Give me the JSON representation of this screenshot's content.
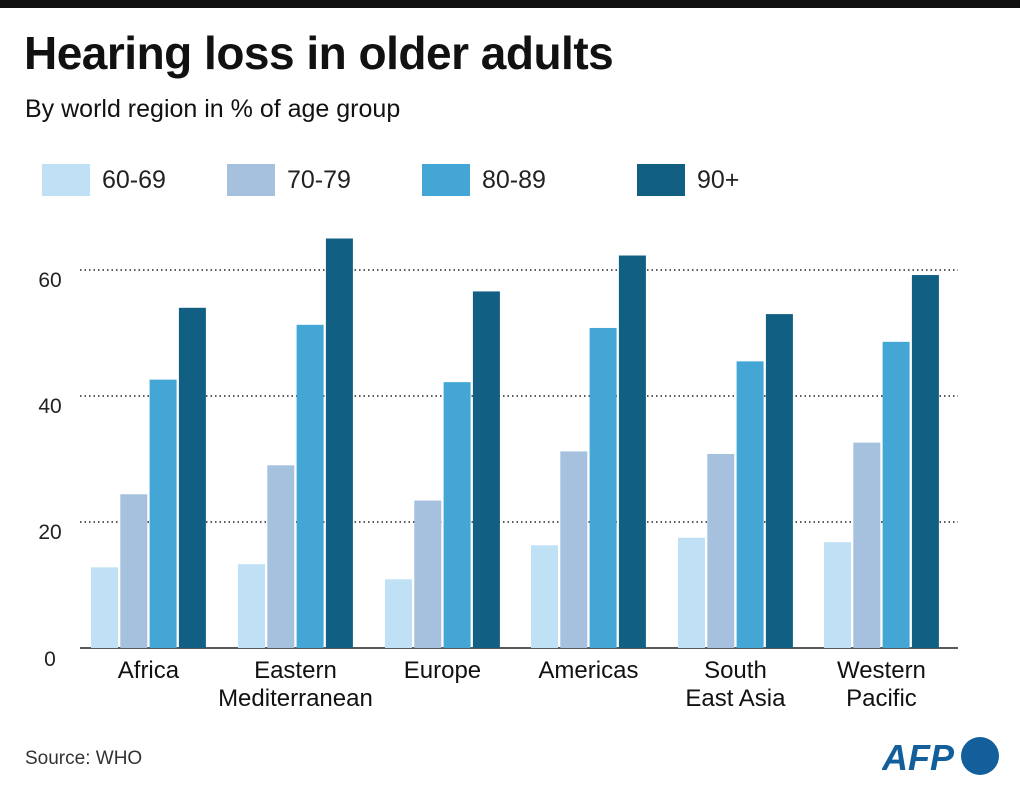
{
  "header": {
    "title": "Hearing loss in older adults",
    "subtitle": "By world region in % of age group"
  },
  "footer": {
    "source": "Source:  WHO",
    "logo_text": "AFP"
  },
  "colors": {
    "series": [
      "#bfe0f5",
      "#a6c1de",
      "#43a6d4",
      "#125f84"
    ],
    "grid": "#222222",
    "text": "#111111"
  },
  "chart_data": {
    "type": "bar",
    "title": "Hearing loss in older adults",
    "subtitle": "By world region in % of age group",
    "categories": [
      [
        "Africa"
      ],
      [
        "Eastern",
        "Mediterranean"
      ],
      [
        "Europe"
      ],
      [
        "Americas"
      ],
      [
        "South",
        "East Asia"
      ],
      [
        "Western",
        "Pacific"
      ]
    ],
    "series": [
      {
        "name": "60-69",
        "values": [
          12.8,
          13.3,
          10.9,
          16.3,
          17.5,
          16.8
        ]
      },
      {
        "name": "70-79",
        "values": [
          24.4,
          29.0,
          23.4,
          31.2,
          30.8,
          32.6
        ]
      },
      {
        "name": "80-89",
        "values": [
          42.6,
          51.3,
          42.2,
          50.8,
          45.5,
          48.6
        ]
      },
      {
        "name": "90+",
        "values": [
          54.0,
          65.0,
          56.6,
          62.3,
          53.0,
          59.2
        ]
      }
    ],
    "ylim": [
      0,
      65
    ],
    "yticks": [
      0,
      20,
      40,
      60
    ],
    "grid": true,
    "grid_style": "dotted",
    "legend_position": "top-left",
    "xlabel": "",
    "ylabel": ""
  }
}
